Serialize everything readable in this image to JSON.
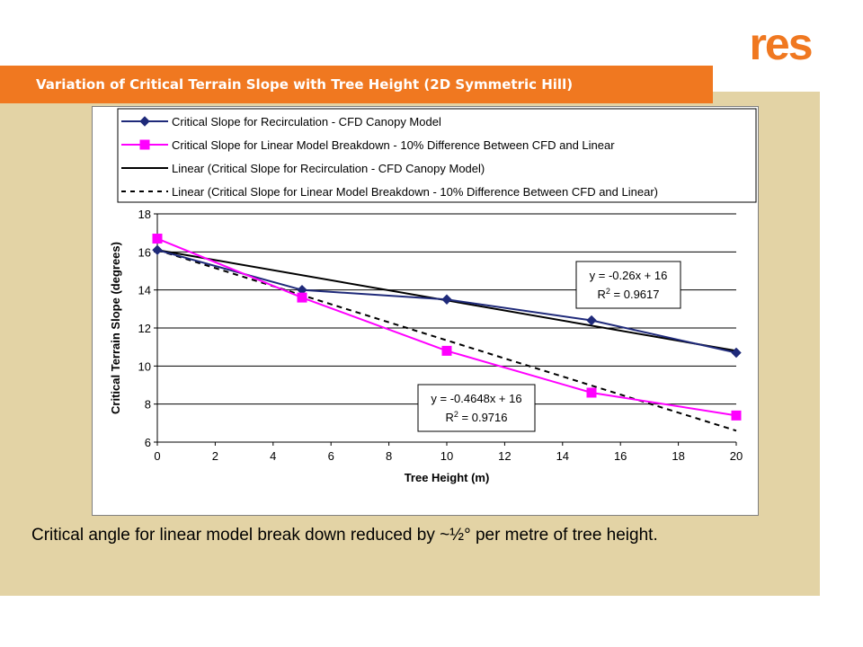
{
  "header": {
    "title": "Variation of Critical Terrain Slope with Tree Height (2D Symmetric Hill)",
    "logo_text": "res",
    "accent_color": "#f07820",
    "panel_color": "#e3d3a5"
  },
  "caption": "Critical angle for linear model break down reduced by ~½° per metre of tree height.",
  "chart_data": {
    "type": "line",
    "xlabel": "Tree Height (m)",
    "ylabel": "Critical Terrain Slope (degrees)",
    "xlim": [
      0,
      20
    ],
    "ylim": [
      6,
      18
    ],
    "xticks": [
      0,
      2,
      4,
      6,
      8,
      10,
      12,
      14,
      16,
      18,
      20
    ],
    "yticks": [
      6,
      8,
      10,
      12,
      14,
      16,
      18
    ],
    "grid": "horizontal",
    "legend_position": "top",
    "series": [
      {
        "name": "Critical Slope for Recirculation - CFD Canopy Model",
        "color": "#1f2a7a",
        "marker": "diamond",
        "x": [
          0,
          5,
          10,
          15,
          20
        ],
        "y": [
          16.1,
          14.0,
          13.5,
          12.4,
          10.7
        ]
      },
      {
        "name": "Critical Slope for Linear Model Breakdown - 10% Difference Between CFD and Linear",
        "color": "#ff00ff",
        "marker": "square",
        "x": [
          0,
          5,
          10,
          15,
          20
        ],
        "y": [
          16.7,
          13.6,
          10.8,
          8.6,
          7.4
        ]
      }
    ],
    "trendlines": [
      {
        "name": "Linear (Critical Slope for Recirculation - CFD Canopy Model)",
        "style": "solid",
        "color": "#000000",
        "x": [
          0,
          20
        ],
        "y": [
          16.1,
          10.8
        ],
        "equation": "y = -0.26x + 16",
        "r2_label": "R",
        "r2_value": " = 0.9617"
      },
      {
        "name": "Linear (Critical Slope for Linear Model Breakdown - 10% Difference Between CFD and Linear)",
        "style": "dashed",
        "color": "#000000",
        "x": [
          0,
          20
        ],
        "y": [
          16.1,
          6.6
        ],
        "equation": "y = -0.4648x + 16",
        "r2_label": "R",
        "r2_value": " = 0.9716"
      }
    ]
  }
}
